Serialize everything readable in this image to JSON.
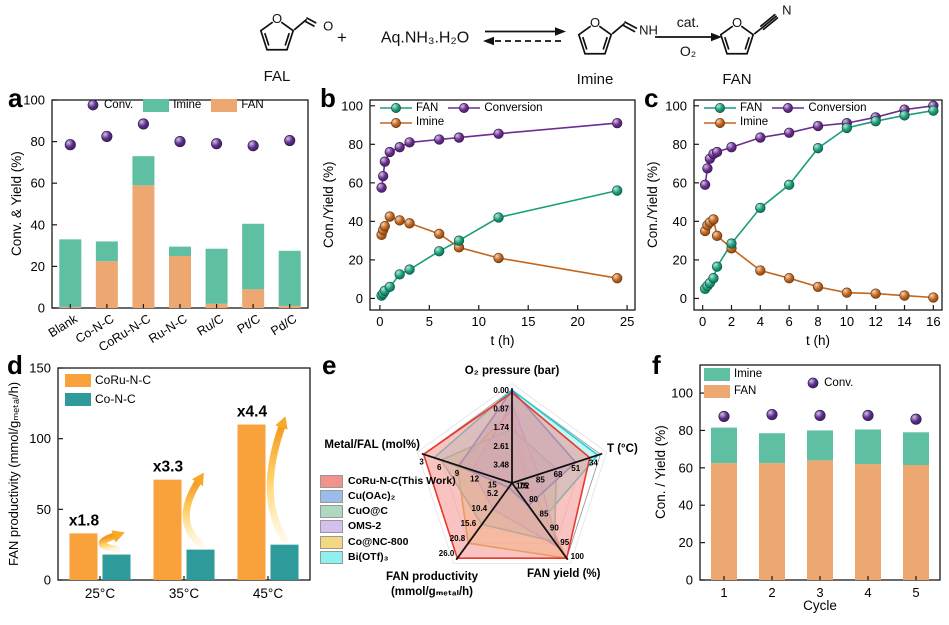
{
  "scheme": {
    "reactant": "FAL",
    "plus": "+",
    "reagent": "Aq.NH₃.H₂O",
    "intermediate": "Imine",
    "catalyst": "cat.",
    "oxidant": "O₂",
    "product": "FAN",
    "ring_o": "O",
    "aldehyde_o": "O",
    "imine_nh": "NH",
    "nitrile_n": "N"
  },
  "panels": {
    "a": {
      "letter": "a",
      "legend": [
        {
          "label": "Conv.",
          "color": "#5B2D8E",
          "marker": "sphere"
        },
        {
          "label": "Imine",
          "color": "#5EBFA2",
          "marker": "swatch"
        },
        {
          "label": "FAN",
          "color": "#EDA771",
          "marker": "swatch"
        }
      ]
    },
    "b": {
      "letter": "b",
      "legend": [
        {
          "label": "FAN",
          "color": "#1A9E7C",
          "marker": "linesphere"
        },
        {
          "label": "Conversion",
          "color": "#6A2D91",
          "marker": "linesphere"
        },
        {
          "label": "Imine",
          "color": "#C2661D",
          "marker": "linesphere"
        }
      ]
    },
    "c": {
      "letter": "c",
      "legend": [
        {
          "label": "FAN",
          "color": "#1A9E7C",
          "marker": "linesphere"
        },
        {
          "label": "Conversion",
          "color": "#6A2D91",
          "marker": "linesphere"
        },
        {
          "label": "Imine",
          "color": "#C2661D",
          "marker": "linesphere"
        }
      ]
    },
    "d": {
      "letter": "d",
      "legend": [
        {
          "label": "CoRu-N-C",
          "color": "#F9A23C",
          "marker": "swatch"
        },
        {
          "label": "Co-N-C",
          "color": "#2F9A9A",
          "marker": "swatch"
        }
      ]
    },
    "e": {
      "letter": "e"
    },
    "f": {
      "letter": "f",
      "legend": [
        {
          "label": "Imine",
          "color": "#5EBFA2",
          "marker": "swatch"
        },
        {
          "label": "FAN",
          "color": "#EDA771",
          "marker": "swatch"
        }
      ],
      "legend_conv": {
        "label": "Conv.",
        "color": "#5B2D8E",
        "marker": "sphere"
      }
    }
  },
  "chart_data": [
    {
      "panel": "a",
      "type": "bar",
      "stacked": true,
      "categories": [
        "Blank",
        "Co-N-C",
        "CoRu-N-C",
        "Ru-N-C",
        "Ru/C",
        "Pt/C",
        "Pd/C"
      ],
      "series": [
        {
          "name": "FAN",
          "color": "#EDA771",
          "values": [
            0.5,
            22.5,
            59,
            25,
            2,
            9,
            1
          ]
        },
        {
          "name": "Imine",
          "color": "#5EBFA2",
          "values": [
            32.5,
            9.5,
            14,
            4.5,
            26.5,
            31.5,
            26.5
          ]
        }
      ],
      "scatter": {
        "name": "Conv.",
        "color": "#5B2D8E",
        "values": [
          78.5,
          82.5,
          88.5,
          80,
          79,
          78,
          80.5
        ]
      },
      "ylabel": "Conv. & Yield (%)",
      "ylim": [
        0,
        100
      ],
      "yticks": [
        0,
        20,
        40,
        60,
        80,
        100
      ]
    },
    {
      "panel": "b",
      "type": "line",
      "x": [
        0.17,
        0.33,
        0.5,
        1,
        2,
        3,
        6,
        8,
        12,
        24
      ],
      "series": [
        {
          "name": "Conversion",
          "color": "#6A2D91",
          "values": [
            57.5,
            63.5,
            71,
            76,
            78.5,
            81,
            82.5,
            83.5,
            85.5,
            91
          ]
        },
        {
          "name": "Imine",
          "color": "#C2661D",
          "values": [
            33,
            35.5,
            37.5,
            42.5,
            40.5,
            39,
            33.5,
            26.5,
            21,
            10.5
          ]
        },
        {
          "name": "FAN",
          "color": "#1A9E7C",
          "values": [
            1.5,
            2.5,
            4,
            6,
            12.5,
            15,
            24.5,
            30,
            42,
            56
          ]
        }
      ],
      "xlabel": "t (h)",
      "ylabel": "Con./Yield (%)",
      "xlim": [
        0,
        25
      ],
      "xticks": [
        0,
        5,
        10,
        15,
        20,
        25
      ],
      "ylim": [
        0,
        100
      ],
      "yticks": [
        0,
        20,
        40,
        60,
        80,
        100
      ]
    },
    {
      "panel": "c",
      "type": "line",
      "x": [
        0.17,
        0.33,
        0.5,
        0.75,
        1,
        2,
        4,
        6,
        8,
        10,
        12,
        14,
        16
      ],
      "series": [
        {
          "name": "Conversion",
          "color": "#6A2D91",
          "values": [
            59,
            67.5,
            72.5,
            75,
            76,
            78.5,
            83.5,
            86,
            89.5,
            91,
            94,
            98,
            100
          ]
        },
        {
          "name": "Imine",
          "color": "#C2661D",
          "values": [
            35,
            38,
            39.5,
            41,
            32.5,
            26,
            14.5,
            10.5,
            6,
            3,
            2.5,
            1.5,
            0.5
          ]
        },
        {
          "name": "FAN",
          "color": "#1A9E7C",
          "values": [
            5,
            6.5,
            8,
            10.5,
            16.5,
            28.5,
            47,
            59,
            78,
            88.5,
            92,
            95,
            97.5
          ]
        }
      ],
      "xlabel": "t (h)",
      "ylabel": "Con./Yield (%)",
      "xlim": [
        0,
        16
      ],
      "xticks": [
        0,
        2,
        4,
        6,
        8,
        10,
        12,
        14,
        16
      ],
      "ylim": [
        0,
        100
      ],
      "yticks": [
        0,
        20,
        40,
        60,
        80,
        100
      ]
    },
    {
      "panel": "d",
      "type": "grouped-bar",
      "categories": [
        "25°C",
        "35°C",
        "45°C"
      ],
      "series": [
        {
          "name": "CoRu-N-C",
          "color": "#F9A23C",
          "values": [
            33,
            71,
            110
          ]
        },
        {
          "name": "Co-N-C",
          "color": "#2F9A9A",
          "values": [
            18,
            21.5,
            25
          ]
        }
      ],
      "annotations": [
        "x1.8",
        "x3.3",
        "x4.4"
      ],
      "ylabel": "FAN productivity (mmol/gₘₑₜₐₗ/h)",
      "ylim": [
        0,
        150
      ],
      "yticks": [
        0,
        50,
        100,
        150
      ]
    },
    {
      "panel": "e",
      "type": "radar",
      "axes": [
        {
          "label": "O₂ pressure (bar)",
          "ticks": [
            "0.00",
            "0.87",
            "1.74",
            "2.61",
            "3.48"
          ]
        },
        {
          "label": "T (°C)",
          "ticks": [
            "34",
            "51",
            "68",
            "85",
            "102"
          ]
        },
        {
          "label": "FAN yield (%)",
          "ticks": [
            "100",
            "95",
            "90",
            "85",
            "80",
            "75"
          ]
        },
        {
          "label": "FAN productivity",
          "label2": "(mmol/gₘₑₜₐₗ/h)",
          "ticks": [
            "26.0",
            "20.8",
            "15.6",
            "10.4",
            "5.2"
          ]
        },
        {
          "label": "Metal/FAL (mol%)",
          "ticks": [
            "3",
            "6",
            "9",
            "12",
            "15"
          ]
        }
      ],
      "series": [
        {
          "name": "CoRu-N-C(This Work)",
          "stroke": "#E8392D",
          "fill": "#F2928D",
          "fractions": [
            0.97,
            0.88,
            1.0,
            1.0,
            1.0
          ]
        },
        {
          "name": "Cu(OAc)₂",
          "stroke": "#4F87D7",
          "fill": "#9BBCE8",
          "fractions": [
            1.0,
            0.72,
            0.3,
            0.06,
            0.6
          ]
        },
        {
          "name": "CuO@C",
          "stroke": "#7FC2A2",
          "fill": "#AFD8C0",
          "fractions": [
            0.58,
            0.5,
            0.78,
            0.55,
            0.8
          ]
        },
        {
          "name": "OMS-2",
          "stroke": "#B591DD",
          "fill": "#D4C0EC",
          "fractions": [
            0.85,
            0.3,
            0.85,
            0.35,
            0.45
          ]
        },
        {
          "name": "Co@NC-800",
          "stroke": "#D9A92C",
          "fill": "#F2D883",
          "fractions": [
            0.78,
            0.15,
            1.0,
            0.8,
            0.62
          ]
        },
        {
          "name": "Bi(OTf)₃",
          "stroke": "#25CFCF",
          "fill": "#8FF0F0",
          "fractions": [
            1.0,
            0.97,
            0.52,
            0.05,
            0.88
          ]
        }
      ]
    },
    {
      "panel": "f",
      "type": "bar",
      "stacked": true,
      "categories": [
        "1",
        "2",
        "3",
        "4",
        "5"
      ],
      "series": [
        {
          "name": "FAN",
          "color": "#EDA771",
          "values": [
            62.5,
            62.5,
            64,
            62,
            61.5
          ]
        },
        {
          "name": "Imine",
          "color": "#5EBFA2",
          "values": [
            19,
            16,
            16,
            18.5,
            17.5
          ]
        }
      ],
      "scatter": {
        "name": "Conv.",
        "color": "#5B2D8E",
        "values": [
          87.5,
          88.5,
          88,
          88,
          86
        ]
      },
      "xlabel": "Cycle",
      "ylabel": "Con. / Yield (%)",
      "ylim": [
        0,
        115
      ],
      "yticks": [
        0,
        20,
        40,
        60,
        80,
        100
      ]
    }
  ]
}
